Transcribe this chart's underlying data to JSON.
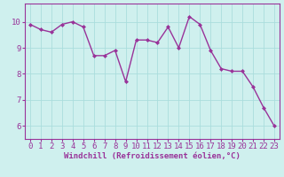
{
  "x": [
    0,
    1,
    2,
    3,
    4,
    5,
    6,
    7,
    8,
    9,
    10,
    11,
    12,
    13,
    14,
    15,
    16,
    17,
    18,
    19,
    20,
    21,
    22,
    23
  ],
  "y": [
    9.9,
    9.7,
    9.6,
    9.9,
    10.0,
    9.8,
    8.7,
    8.7,
    8.9,
    7.7,
    9.3,
    9.3,
    9.2,
    9.8,
    9.0,
    10.2,
    9.9,
    8.9,
    8.2,
    8.1,
    8.1,
    7.5,
    6.7,
    6.0
  ],
  "line_color": "#993399",
  "marker": "D",
  "marker_size": 2.0,
  "linewidth": 1.0,
  "xlabel": "Windchill (Refroidissement éolien,°C)",
  "xlim": [
    -0.5,
    23.5
  ],
  "ylim": [
    5.5,
    10.7
  ],
  "yticks": [
    6,
    7,
    8,
    9,
    10
  ],
  "xticks": [
    0,
    1,
    2,
    3,
    4,
    5,
    6,
    7,
    8,
    9,
    10,
    11,
    12,
    13,
    14,
    15,
    16,
    17,
    18,
    19,
    20,
    21,
    22,
    23
  ],
  "bg_color": "#cff0ee",
  "grid_color": "#aadddd",
  "tick_color": "#993399",
  "label_color": "#993399",
  "xlabel_fontsize": 6.5,
  "tick_fontsize": 6.5
}
